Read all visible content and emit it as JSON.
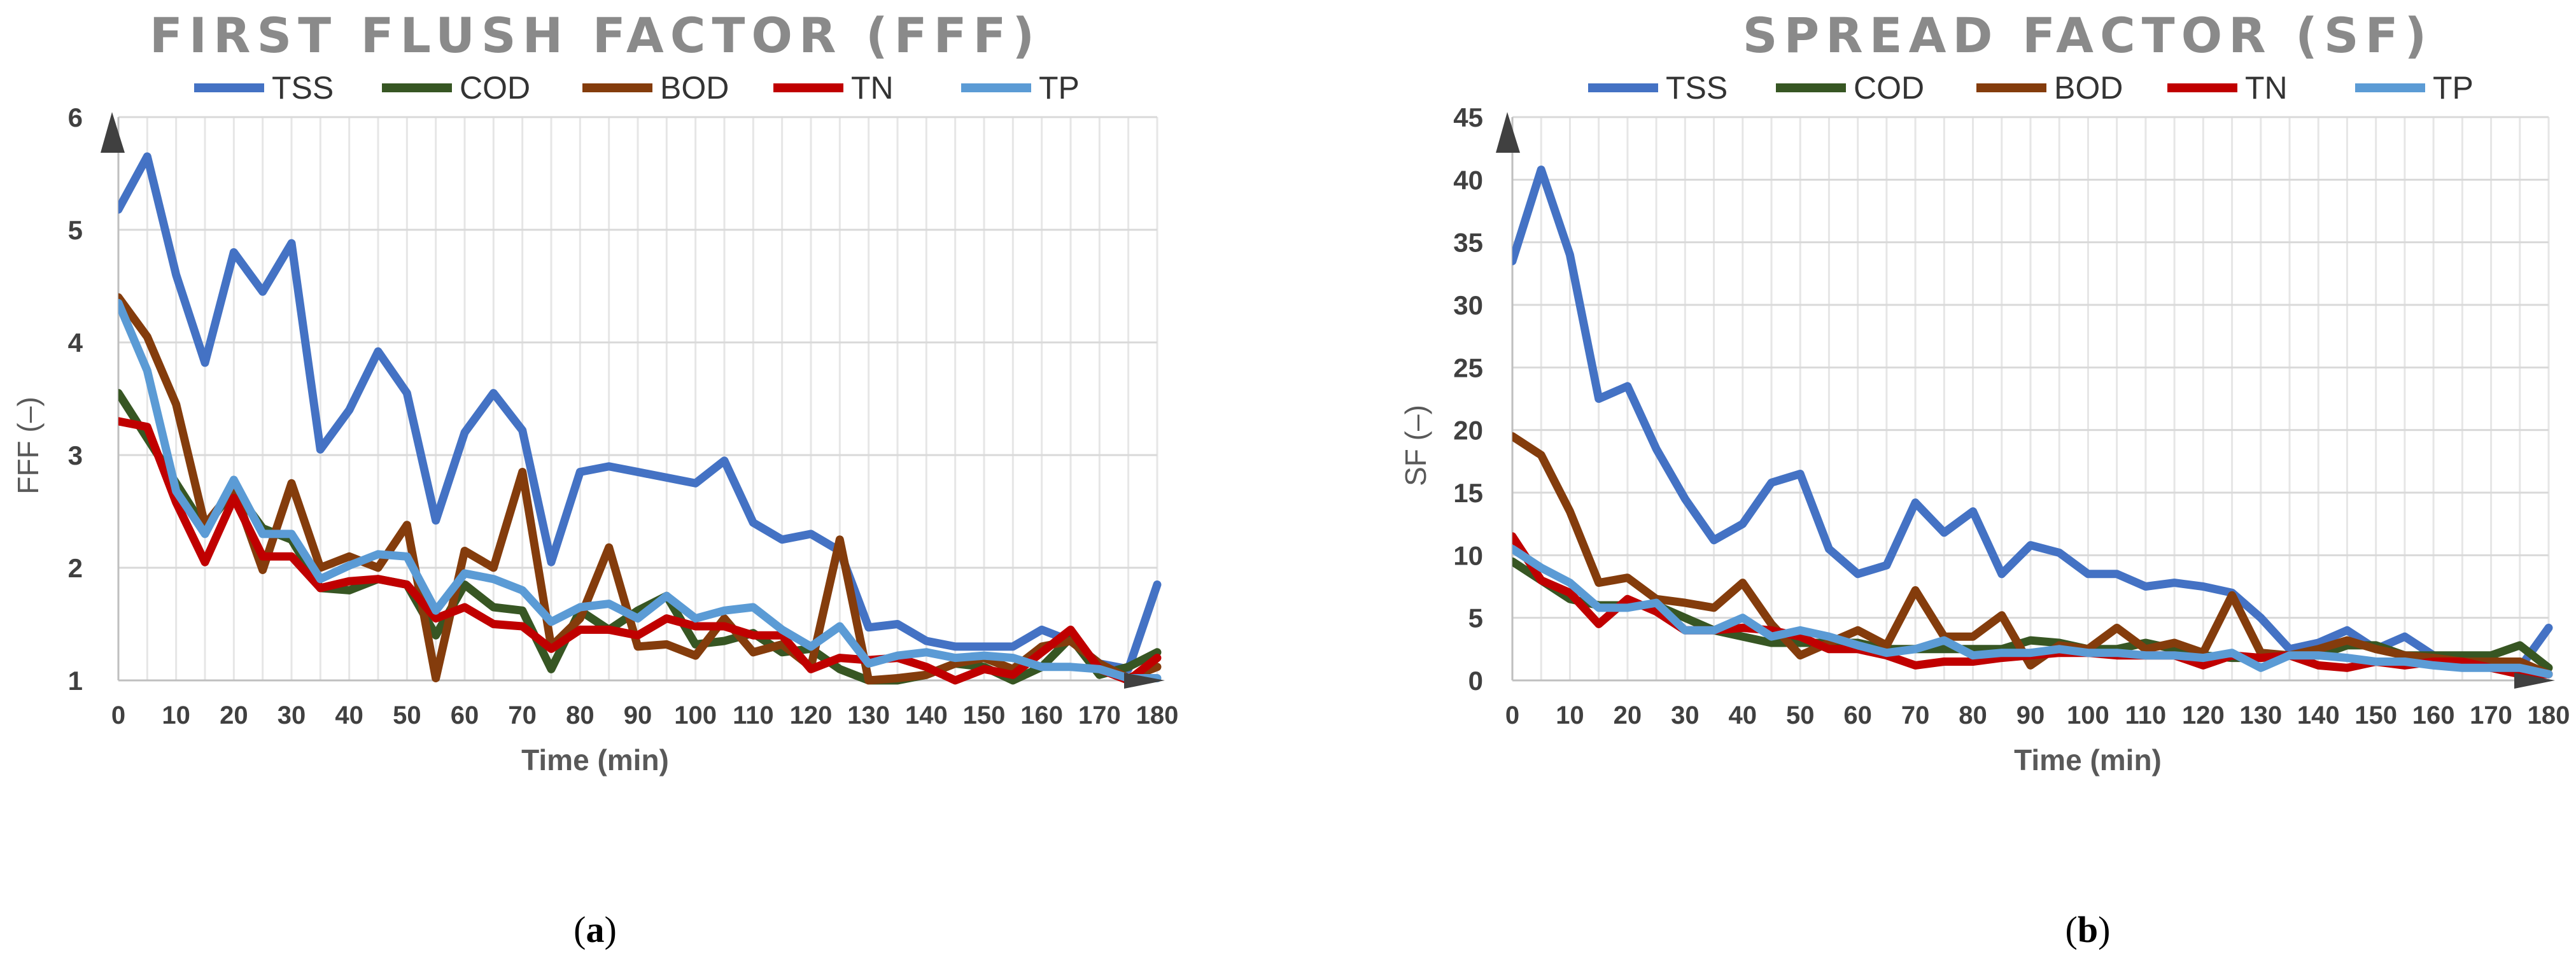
{
  "chart_data": [
    {
      "type": "line",
      "title": "FIRST FLUSH FACTOR (FFF)",
      "xlabel": "Time (min)",
      "ylabel": "FFF (–)",
      "caption_letter": "a",
      "x": [
        0,
        5,
        10,
        15,
        20,
        25,
        30,
        35,
        40,
        45,
        50,
        55,
        60,
        65,
        70,
        75,
        80,
        85,
        90,
        95,
        100,
        105,
        110,
        115,
        120,
        125,
        130,
        135,
        140,
        145,
        150,
        155,
        160,
        165,
        170,
        175,
        180
      ],
      "xticks": [
        "0",
        "10",
        "20",
        "30",
        "40",
        "50",
        "60",
        "70",
        "80",
        "90",
        "100",
        "110",
        "120",
        "130",
        "140",
        "150",
        "160",
        "170",
        "180"
      ],
      "yticks": [
        "1",
        "2",
        "3",
        "4",
        "5",
        "6"
      ],
      "xlim": [
        0,
        180
      ],
      "ylim": [
        1,
        6
      ],
      "grid": true,
      "legend_position": "top",
      "series": [
        {
          "name": "TSS",
          "color": "#4472C4",
          "values": [
            5.18,
            5.65,
            4.6,
            3.82,
            4.8,
            4.45,
            4.88,
            3.05,
            3.4,
            3.92,
            3.55,
            2.42,
            3.2,
            3.55,
            3.22,
            2.05,
            2.85,
            2.9,
            2.85,
            2.8,
            2.75,
            2.95,
            2.4,
            2.25,
            2.3,
            2.15,
            1.47,
            1.5,
            1.35,
            1.3,
            1.3,
            1.3,
            1.45,
            1.35,
            1.15,
            1.1,
            1.85
          ]
        },
        {
          "name": "COD",
          "color": "#375623",
          "values": [
            3.55,
            3.15,
            2.75,
            2.35,
            2.7,
            2.35,
            2.25,
            1.82,
            1.8,
            1.9,
            1.85,
            1.4,
            1.85,
            1.65,
            1.62,
            1.1,
            1.62,
            1.45,
            1.62,
            1.75,
            1.32,
            1.35,
            1.42,
            1.25,
            1.28,
            1.1,
            1.0,
            1.0,
            1.05,
            1.15,
            1.12,
            1.0,
            1.12,
            1.38,
            1.05,
            1.12,
            1.25
          ]
        },
        {
          "name": "BOD",
          "color": "#843C0C",
          "values": [
            4.4,
            4.05,
            3.45,
            2.38,
            2.7,
            1.98,
            2.75,
            2.0,
            2.1,
            2.0,
            2.38,
            1.02,
            2.15,
            2.0,
            2.85,
            1.3,
            1.55,
            2.18,
            1.3,
            1.32,
            1.22,
            1.55,
            1.25,
            1.32,
            1.12,
            2.25,
            1.0,
            1.02,
            1.05,
            1.15,
            1.2,
            1.1,
            1.3,
            1.35,
            1.15,
            1.02,
            1.12
          ]
        },
        {
          "name": "TN",
          "color": "#C00000",
          "values": [
            3.3,
            3.25,
            2.58,
            2.05,
            2.62,
            2.1,
            2.1,
            1.82,
            1.88,
            1.9,
            1.85,
            1.55,
            1.65,
            1.5,
            1.48,
            1.28,
            1.45,
            1.45,
            1.4,
            1.55,
            1.48,
            1.48,
            1.4,
            1.4,
            1.1,
            1.2,
            1.18,
            1.2,
            1.12,
            1.0,
            1.1,
            1.05,
            1.25,
            1.45,
            1.1,
            1.0,
            1.2
          ]
        },
        {
          "name": "TP",
          "color": "#5B9BD5",
          "values": [
            4.35,
            3.75,
            2.68,
            2.3,
            2.78,
            2.3,
            2.3,
            1.9,
            2.02,
            2.12,
            2.1,
            1.62,
            1.95,
            1.9,
            1.8,
            1.52,
            1.65,
            1.68,
            1.55,
            1.75,
            1.55,
            1.62,
            1.65,
            1.45,
            1.3,
            1.48,
            1.15,
            1.22,
            1.25,
            1.2,
            1.22,
            1.2,
            1.12,
            1.12,
            1.1,
            1.02,
            1.02
          ]
        }
      ]
    },
    {
      "type": "line",
      "title": "SPREAD FACTOR (SF)",
      "xlabel": "Time (min)",
      "ylabel": "SF (–)",
      "caption_letter": "b",
      "x": [
        0,
        5,
        10,
        15,
        20,
        25,
        30,
        35,
        40,
        45,
        50,
        55,
        60,
        65,
        70,
        75,
        80,
        85,
        90,
        95,
        100,
        105,
        110,
        115,
        120,
        125,
        130,
        135,
        140,
        145,
        150,
        155,
        160,
        165,
        170,
        175,
        180
      ],
      "xticks": [
        "0",
        "10",
        "20",
        "30",
        "40",
        "50",
        "60",
        "70",
        "80",
        "90",
        "100",
        "110",
        "120",
        "130",
        "140",
        "150",
        "160",
        "170",
        "180"
      ],
      "yticks": [
        "0",
        "5",
        "10",
        "15",
        "20",
        "25",
        "30",
        "35",
        "40",
        "45"
      ],
      "xlim": [
        0,
        180
      ],
      "ylim": [
        0,
        45
      ],
      "grid": true,
      "legend_position": "top",
      "series": [
        {
          "name": "TSS",
          "color": "#4472C4",
          "values": [
            33.5,
            40.8,
            34,
            22.5,
            23.5,
            18.5,
            14.5,
            11.2,
            12.5,
            15.8,
            16.5,
            10.5,
            8.5,
            9.2,
            14.2,
            11.8,
            13.5,
            8.5,
            10.8,
            10.2,
            8.5,
            8.5,
            7.5,
            7.8,
            7.5,
            7.0,
            5.0,
            2.5,
            3.0,
            4.0,
            2.5,
            3.5,
            2.0,
            1.5,
            1.0,
            1.0,
            4.2
          ]
        },
        {
          "name": "COD",
          "color": "#375623",
          "values": [
            9.5,
            8,
            6.5,
            6,
            6,
            6,
            5,
            4,
            3.5,
            3,
            3,
            3,
            3,
            2.5,
            2.5,
            2.5,
            2.5,
            2.5,
            3.2,
            3,
            2.5,
            2.5,
            3,
            2.5,
            2,
            1.8,
            1.8,
            2,
            2,
            2.8,
            2.8,
            2,
            2,
            2,
            2,
            2.8,
            1
          ]
        },
        {
          "name": "BOD",
          "color": "#843C0C",
          "values": [
            19.5,
            18,
            13.5,
            7.8,
            8.2,
            6.5,
            6.2,
            5.8,
            7.8,
            4.5,
            2,
            3,
            4,
            2.8,
            7.2,
            3.5,
            3.5,
            5.2,
            1.2,
            2.8,
            2.5,
            4.2,
            2.5,
            3,
            2.2,
            6.8,
            2.2,
            2,
            2.5,
            3.2,
            2.5,
            2,
            1.8,
            1.5,
            1.5,
            1.5,
            0.5
          ]
        },
        {
          "name": "TN",
          "color": "#C00000",
          "values": [
            11.5,
            8,
            7,
            4.5,
            6.5,
            5.5,
            4,
            4,
            4.2,
            4,
            3.5,
            2.5,
            2.5,
            2,
            1.2,
            1.5,
            1.5,
            1.8,
            2,
            2.2,
            2.2,
            2,
            2,
            2,
            1.2,
            2,
            1.8,
            2,
            1.2,
            1,
            1.5,
            1.2,
            1.5,
            1.5,
            1,
            0.5,
            0.5
          ]
        },
        {
          "name": "TP",
          "color": "#5B9BD5",
          "values": [
            10.5,
            9,
            7.8,
            5.8,
            5.8,
            6.2,
            4,
            4,
            5,
            3.5,
            4,
            3.5,
            2.8,
            2.2,
            2.5,
            3.2,
            2,
            2.2,
            2.2,
            2.5,
            2.2,
            2.2,
            2,
            2,
            1.8,
            2.2,
            1,
            2,
            2,
            1.8,
            1.5,
            1.5,
            1.2,
            1,
            1,
            1,
            0.5
          ]
        }
      ]
    }
  ]
}
